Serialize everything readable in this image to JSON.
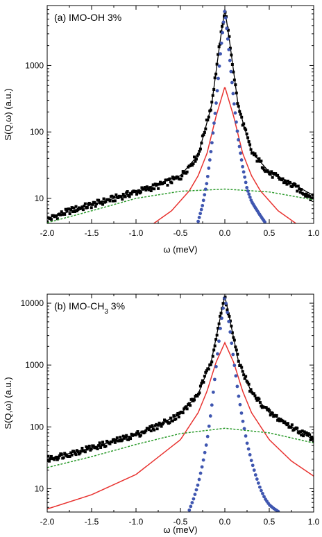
{
  "chart_data": [
    {
      "type": "line",
      "panel_label": "(a) IMO-OH 3%",
      "xlabel": "ω (meV)",
      "ylabel": "S(Q,ω) (a.u.)",
      "xscale": "linear",
      "yscale": "log",
      "xlim": [
        -2.0,
        1.0
      ],
      "ylim": [
        4.2,
        8000
      ],
      "xticks": [
        "-2.0",
        "-1.5",
        "-1.0",
        "-0.5",
        "0.0",
        "0.5",
        "1.0"
      ],
      "yticks": [
        {
          "value": 10,
          "label": "10"
        },
        {
          "value": 100,
          "label": "100"
        },
        {
          "value": 1000,
          "label": "1000"
        }
      ],
      "grid": false,
      "legend": "none",
      "series": [
        {
          "kind": "data-points",
          "color": "#000000",
          "x": [
            -2.0,
            -1.75,
            -1.5,
            -1.25,
            -1.0,
            -0.75,
            -0.5,
            -0.3,
            -0.15,
            -0.05,
            0.0,
            0.05,
            0.15,
            0.3,
            0.5,
            0.75,
            1.0
          ],
          "y": [
            4.8,
            6.5,
            8,
            10,
            12.5,
            15.5,
            21,
            45,
            260,
            2500,
            7000,
            2500,
            240,
            50,
            24,
            16,
            10
          ]
        },
        {
          "kind": "total-fit",
          "color": "#000000",
          "x": [
            -2.0,
            -1.5,
            -1.0,
            -0.5,
            -0.3,
            -0.15,
            -0.05,
            0.0,
            0.05,
            0.15,
            0.3,
            0.5,
            0.75,
            1.0
          ],
          "y": [
            5,
            8,
            12.5,
            22,
            45,
            250,
            2500,
            7000,
            2500,
            250,
            50,
            25,
            17,
            11
          ]
        },
        {
          "kind": "lorentzian-narrow",
          "color": "#e8322f",
          "x": [
            -0.8,
            -0.6,
            -0.4,
            -0.3,
            -0.2,
            -0.1,
            0.0,
            0.1,
            0.2,
            0.3,
            0.4,
            0.6,
            0.8
          ],
          "y": [
            4.2,
            6.5,
            13,
            22,
            48,
            170,
            480,
            170,
            48,
            22,
            13,
            6.5,
            4.2
          ]
        },
        {
          "kind": "lorentzian-broad",
          "color": "#2a9a2a",
          "x": [
            -2.0,
            -1.5,
            -1.0,
            -0.5,
            0.0,
            0.5,
            1.0
          ],
          "y": [
            4.3,
            6.5,
            10,
            12.8,
            13.8,
            12.5,
            9.5
          ]
        },
        {
          "kind": "resolution",
          "color": "#3f56b0",
          "x": [
            -0.3,
            -0.25,
            -0.2,
            -0.15,
            -0.1,
            -0.05,
            0.0,
            0.05,
            0.1,
            0.15,
            0.2,
            0.25,
            0.3,
            0.35,
            0.4,
            0.45
          ],
          "y": [
            4.5,
            8,
            18,
            60,
            250,
            1500,
            7000,
            1500,
            300,
            80,
            30,
            14,
            9,
            7,
            5.5,
            4.4
          ]
        }
      ]
    },
    {
      "type": "line",
      "panel_label": "(b) IMO-CH",
      "panel_label_subscript": "3",
      "panel_label_suffix": " 3%",
      "xlabel": "ω (meV)",
      "ylabel": "S(Q,ω) (a.u.)",
      "xscale": "linear",
      "yscale": "log",
      "xlim": [
        -2.0,
        1.0
      ],
      "ylim": [
        4.2,
        14000
      ],
      "xticks": [
        "-2.0",
        "-1.5",
        "-1.0",
        "-0.5",
        "0.0",
        "0.5",
        "1.0"
      ],
      "yticks": [
        {
          "value": 10,
          "label": "10"
        },
        {
          "value": 100,
          "label": "100"
        },
        {
          "value": 1000,
          "label": "1000"
        },
        {
          "value": 10000,
          "label": "10000"
        }
      ],
      "grid": false,
      "legend": "none",
      "series": [
        {
          "kind": "data-points",
          "color": "#000000",
          "x": [
            -2.0,
            -1.75,
            -1.5,
            -1.25,
            -1.0,
            -0.75,
            -0.5,
            -0.3,
            -0.15,
            -0.05,
            0.0,
            0.05,
            0.15,
            0.3,
            0.5,
            0.75,
            1.0
          ],
          "y": [
            30,
            37,
            46,
            58,
            75,
            105,
            160,
            340,
            1200,
            6000,
            13000,
            6000,
            1200,
            360,
            170,
            100,
            65
          ]
        },
        {
          "kind": "total-fit",
          "color": "#000000",
          "x": [
            -2.0,
            -1.5,
            -1.0,
            -0.5,
            -0.3,
            -0.15,
            -0.05,
            0.0,
            0.05,
            0.15,
            0.3,
            0.5,
            0.75,
            1.0
          ],
          "y": [
            30,
            46,
            75,
            160,
            340,
            1200,
            6000,
            13000,
            6000,
            1200,
            360,
            170,
            100,
            62
          ]
        },
        {
          "kind": "lorentzian-narrow",
          "color": "#e8322f",
          "x": [
            -2.0,
            -1.5,
            -1.0,
            -0.5,
            -0.3,
            -0.2,
            -0.1,
            0.0,
            0.1,
            0.2,
            0.3,
            0.5,
            0.75,
            1.0
          ],
          "y": [
            4.7,
            8,
            17,
            62,
            170,
            380,
            1100,
            2300,
            1100,
            380,
            170,
            62,
            28,
            16
          ]
        },
        {
          "kind": "lorentzian-broad",
          "color": "#2a9a2a",
          "x": [
            -2.0,
            -1.5,
            -1.0,
            -0.5,
            0.0,
            0.5,
            1.0
          ],
          "y": [
            22,
            33,
            52,
            78,
            95,
            80,
            55
          ]
        },
        {
          "kind": "resolution",
          "color": "#3f56b0",
          "x": [
            -0.4,
            -0.35,
            -0.3,
            -0.25,
            -0.2,
            -0.15,
            -0.1,
            -0.05,
            0.0,
            0.05,
            0.1,
            0.15,
            0.2,
            0.25,
            0.3,
            0.35,
            0.4,
            0.45,
            0.5,
            0.55,
            0.6
          ],
          "y": [
            4.5,
            7,
            12,
            25,
            60,
            200,
            900,
            4000,
            13000,
            4500,
            1200,
            350,
            130,
            55,
            28,
            16,
            10,
            7,
            5.5,
            4.8,
            4.3
          ]
        }
      ]
    }
  ]
}
